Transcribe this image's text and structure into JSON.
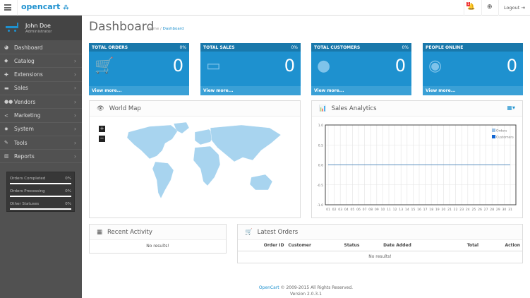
{
  "header": {
    "brand": "opencart",
    "notification_count": "1",
    "logout_label": "Logout"
  },
  "sidebar": {
    "user_name": "John Doe",
    "user_role": "Administrator",
    "items": [
      {
        "label": "Dashboard",
        "icon": "dashboard-icon",
        "arrow": ""
      },
      {
        "label": "Catalog",
        "icon": "tags-icon",
        "arrow": "›"
      },
      {
        "label": "Extensions",
        "icon": "puzzle-icon",
        "arrow": "›"
      },
      {
        "label": "Sales",
        "icon": "cart-icon",
        "arrow": "›"
      },
      {
        "label": "Vendors",
        "icon": "users-icon",
        "arrow": "›"
      },
      {
        "label": "Marketing",
        "icon": "share-icon",
        "arrow": "›"
      },
      {
        "label": "System",
        "icon": "gear-icon",
        "arrow": "›"
      },
      {
        "label": "Tools",
        "icon": "wrench-icon",
        "arrow": "›"
      },
      {
        "label": "Reports",
        "icon": "bar-chart-icon",
        "arrow": "›"
      }
    ],
    "stats": [
      {
        "label": "Orders Completed",
        "value": "0%",
        "progress": 0
      },
      {
        "label": "Orders Processing",
        "value": "0%",
        "progress": 0
      },
      {
        "label": "Other Statuses",
        "value": "0%",
        "progress": 0
      }
    ]
  },
  "page": {
    "title": "Dashboard",
    "breadcrumb": [
      "Home",
      "Dashboard"
    ],
    "breadcrumb_sep": "/"
  },
  "tiles": [
    {
      "title": "TOTAL ORDERS",
      "pct": "0%",
      "value": "0",
      "link": "View more...",
      "icon": "cart-icon"
    },
    {
      "title": "TOTAL SALES",
      "pct": "0%",
      "value": "0",
      "link": "View more...",
      "icon": "credit-card-icon"
    },
    {
      "title": "TOTAL CUSTOMERS",
      "pct": "0%",
      "value": "0",
      "link": "View more...",
      "icon": "user-icon"
    },
    {
      "title": "PEOPLE ONLINE",
      "pct": "",
      "value": "0",
      "link": "View more...",
      "icon": "eye-icon"
    }
  ],
  "world_map": {
    "title": "World Map",
    "zoom_in": "+",
    "zoom_out": "−"
  },
  "sales_analytics": {
    "title": "Sales Analytics"
  },
  "recent_activity": {
    "title": "Recent Activity",
    "empty": "No results!"
  },
  "latest_orders": {
    "title": "Latest Orders",
    "columns": [
      "Order ID",
      "Customer",
      "Status",
      "Date Added",
      "Total",
      "Action"
    ],
    "empty": "No results!"
  },
  "footer": {
    "link": "OpenCart",
    "text": "© 2009-2015 All Rights Reserved.",
    "version": "Version 2.0.3.1"
  },
  "chart_data": {
    "type": "line",
    "x": [
      "01",
      "02",
      "03",
      "04",
      "05",
      "06",
      "07",
      "08",
      "09",
      "10",
      "11",
      "12",
      "13",
      "14",
      "15",
      "16",
      "17",
      "18",
      "19",
      "20",
      "21",
      "22",
      "23",
      "24",
      "25",
      "26",
      "27",
      "28",
      "29",
      "30",
      "31"
    ],
    "series": [
      {
        "name": "Orders",
        "color": "#9cc2e5",
        "values": [
          0,
          0,
          0,
          0,
          0,
          0,
          0,
          0,
          0,
          0,
          0,
          0,
          0,
          0,
          0,
          0,
          0,
          0,
          0,
          0,
          0,
          0,
          0,
          0,
          0,
          0,
          0,
          0,
          0,
          0,
          0
        ]
      },
      {
        "name": "Customers",
        "color": "#1065d2",
        "values": [
          0,
          0,
          0,
          0,
          0,
          0,
          0,
          0,
          0,
          0,
          0,
          0,
          0,
          0,
          0,
          0,
          0,
          0,
          0,
          0,
          0,
          0,
          0,
          0,
          0,
          0,
          0,
          0,
          0,
          0,
          0
        ]
      }
    ],
    "yticks": [
      "1.0",
      "0.5",
      "0.0",
      "-0.5",
      "-1.0"
    ],
    "ylim": [
      -1,
      1
    ],
    "grid": true,
    "legend": "top-right"
  },
  "colors": {
    "accent": "#1e91cf",
    "sidebar": "#515151"
  }
}
